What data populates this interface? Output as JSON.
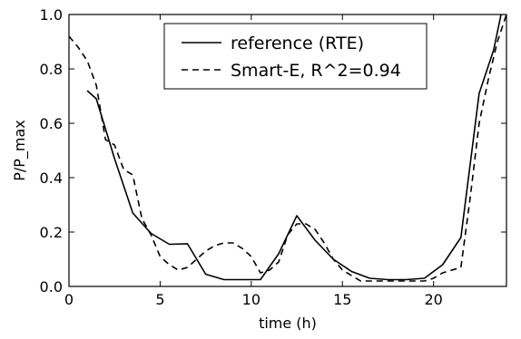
{
  "chart_data": {
    "type": "line",
    "xlabel": "time (h)",
    "ylabel": "P/P_max",
    "xlim": [
      0,
      24
    ],
    "ylim": [
      0,
      1.0
    ],
    "xticks": [
      0,
      5,
      10,
      15,
      20
    ],
    "xtick_labels": [
      "0",
      "5",
      "10",
      "15",
      "20"
    ],
    "yticks": [
      0,
      0.2,
      0.4,
      0.6,
      0.8,
      1.0
    ],
    "ytick_labels": [
      "0.0",
      "0.2",
      "0.4",
      "0.6",
      "0.8",
      "1.0"
    ],
    "grid": false,
    "legend_position": "top-center",
    "series": [
      {
        "name": "reference (RTE)",
        "style": "solid",
        "color": "#000000",
        "x": [
          1.0,
          1.5,
          2.5,
          3.5,
          4.5,
          5.5,
          6.5,
          7.5,
          8.5,
          9.5,
          10.5,
          11.5,
          12.5,
          13.5,
          14.5,
          15.5,
          16.5,
          17.5,
          18.5,
          19.5,
          20.5,
          21.5,
          22.5,
          23.3,
          23.7
        ],
        "y": [
          0.72,
          0.69,
          0.47,
          0.27,
          0.195,
          0.155,
          0.157,
          0.045,
          0.025,
          0.025,
          0.025,
          0.12,
          0.26,
          0.17,
          0.1,
          0.055,
          0.03,
          0.025,
          0.025,
          0.03,
          0.08,
          0.18,
          0.71,
          0.87,
          1.0
        ]
      },
      {
        "name": "Smart-E, R^2=0.94",
        "style": "dashed",
        "color": "#000000",
        "x": [
          0.0,
          0.5,
          1.0,
          1.5,
          2.0,
          2.5,
          3.0,
          3.5,
          4.0,
          4.5,
          5.0,
          5.5,
          6.0,
          6.5,
          7.0,
          7.5,
          8.0,
          8.5,
          9.0,
          9.5,
          10.0,
          10.5,
          11.0,
          11.5,
          12.0,
          12.5,
          13.0,
          13.5,
          14.0,
          14.5,
          15.0,
          15.5,
          16.0,
          16.5,
          17.0,
          17.5,
          18.0,
          18.5,
          19.0,
          19.5,
          20.0,
          20.5,
          21.0,
          21.5,
          22.0,
          22.5,
          23.0,
          23.5,
          24.0
        ],
        "y": [
          0.92,
          0.88,
          0.83,
          0.74,
          0.54,
          0.52,
          0.43,
          0.41,
          0.25,
          0.19,
          0.11,
          0.08,
          0.06,
          0.07,
          0.1,
          0.13,
          0.15,
          0.16,
          0.16,
          0.14,
          0.11,
          0.05,
          0.06,
          0.09,
          0.19,
          0.23,
          0.23,
          0.21,
          0.16,
          0.1,
          0.06,
          0.04,
          0.02,
          0.02,
          0.02,
          0.02,
          0.02,
          0.02,
          0.02,
          0.02,
          0.03,
          0.05,
          0.06,
          0.07,
          0.32,
          0.6,
          0.76,
          0.9,
          1.0
        ]
      }
    ]
  }
}
